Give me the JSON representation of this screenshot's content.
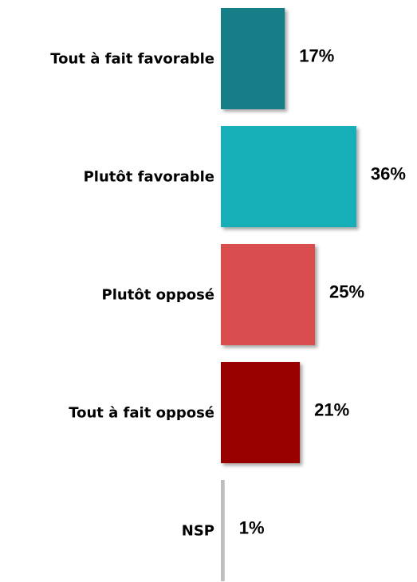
{
  "chart_data": {
    "type": "bar",
    "orientation": "horizontal",
    "categories": [
      "Tout à fait favorable",
      "Plutôt favorable",
      "Plutôt opposé",
      "Tout à fait opposé",
      "NSP"
    ],
    "values": [
      17,
      36,
      25,
      21,
      1
    ],
    "value_labels": [
      "17%",
      "36%",
      "25%",
      "21%",
      "1%"
    ],
    "colors": [
      "#137E86",
      "#14AFB8",
      "#D94E50",
      "#980000",
      "#BDBDBD"
    ],
    "xlim": [
      0,
      36
    ],
    "grid": false,
    "legend": "none"
  }
}
